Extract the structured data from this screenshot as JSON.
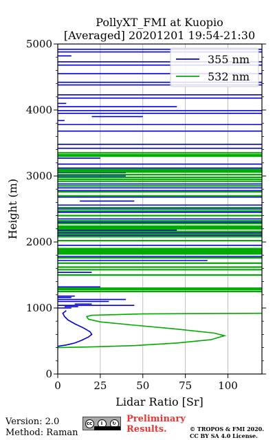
{
  "chart_data": {
    "type": "line",
    "title": "PollyXT_FMI at Kuopio",
    "subtitle": "[Averaged] 20201201 19:54-21:30",
    "xlabel": "Lidar Ratio [Sr]",
    "ylabel": "Height (m)",
    "xlim": [
      0,
      120
    ],
    "ylim": [
      0,
      5000
    ],
    "xticks": [
      "0",
      "25",
      "50",
      "75",
      "100"
    ],
    "yticks": [
      "0",
      "1000",
      "2000",
      "3000",
      "4000",
      "5000"
    ],
    "grid": "vertical",
    "legend_position": "top-right",
    "series": [
      {
        "name": "355 nm",
        "color": "#0000dd",
        "profile": [
          [
            0,
            420
          ],
          [
            5,
            440
          ],
          [
            10,
            470
          ],
          [
            14,
            510
          ],
          [
            18,
            560
          ],
          [
            20,
            600
          ],
          [
            19,
            640
          ],
          [
            15,
            700
          ],
          [
            10,
            760
          ],
          [
            6,
            820
          ],
          [
            4,
            870
          ],
          [
            3,
            920
          ],
          [
            5,
            960
          ]
        ],
        "noise_segments": [
          [
            0,
            8,
            1000
          ],
          [
            4,
            12,
            1020
          ],
          [
            0,
            45,
            1040
          ],
          [
            10,
            20,
            1060
          ],
          [
            0,
            30,
            1100
          ],
          [
            0,
            40,
            1130
          ],
          [
            0,
            8,
            1160
          ],
          [
            0,
            10,
            1180
          ],
          [
            0,
            38,
            1280
          ],
          [
            0,
            25,
            1320
          ],
          [
            0,
            30,
            1500
          ],
          [
            0,
            20,
            1540
          ],
          [
            0,
            88,
            1720
          ],
          [
            0,
            120,
            1780
          ],
          [
            0,
            100,
            1820
          ],
          [
            0,
            120,
            1950
          ],
          [
            0,
            120,
            2100
          ],
          [
            0,
            120,
            2140
          ],
          [
            0,
            70,
            2180
          ],
          [
            0,
            120,
            2300
          ],
          [
            0,
            120,
            2350
          ],
          [
            0,
            120,
            2450
          ],
          [
            0,
            120,
            2500
          ],
          [
            0,
            120,
            2560
          ],
          [
            13,
            45,
            2620
          ],
          [
            0,
            120,
            2680
          ],
          [
            0,
            120,
            2780
          ],
          [
            0,
            120,
            2820
          ],
          [
            0,
            120,
            2880
          ],
          [
            0,
            40,
            3000
          ],
          [
            0,
            40,
            3050
          ],
          [
            0,
            120,
            3120
          ],
          [
            0,
            120,
            3180
          ],
          [
            0,
            25,
            3270
          ],
          [
            0,
            120,
            3420
          ],
          [
            0,
            120,
            3480
          ],
          [
            0,
            120,
            3680
          ],
          [
            0,
            120,
            3780
          ],
          [
            0,
            4,
            3840
          ],
          [
            20,
            50,
            3900
          ],
          [
            0,
            120,
            3950
          ],
          [
            0,
            120,
            3990
          ],
          [
            0,
            70,
            4050
          ],
          [
            0,
            5,
            4100
          ],
          [
            0,
            120,
            4180
          ],
          [
            0,
            120,
            4230
          ],
          [
            0,
            120,
            4380
          ],
          [
            0,
            120,
            4420
          ],
          [
            0,
            120,
            4550
          ],
          [
            0,
            120,
            4680
          ],
          [
            0,
            120,
            4730
          ],
          [
            0,
            8,
            4820
          ],
          [
            0,
            120,
            4880
          ],
          [
            0,
            120,
            4920
          ]
        ]
      },
      {
        "name": "532 nm",
        "color": "#00aa00",
        "profile": [
          [
            0,
            400
          ],
          [
            20,
            410
          ],
          [
            45,
            430
          ],
          [
            70,
            470
          ],
          [
            90,
            520
          ],
          [
            98,
            580
          ],
          [
            92,
            620
          ],
          [
            70,
            680
          ],
          [
            45,
            740
          ],
          [
            25,
            790
          ],
          [
            18,
            830
          ],
          [
            17,
            870
          ],
          [
            20,
            890
          ],
          [
            50,
            910
          ],
          [
            120,
            920
          ]
        ],
        "noise_segments": [
          [
            0,
            120,
            1250
          ],
          [
            0,
            120,
            1280
          ],
          [
            0,
            120,
            1300
          ],
          [
            0,
            120,
            1500
          ],
          [
            0,
            120,
            1580
          ],
          [
            0,
            120,
            1620
          ],
          [
            0,
            120,
            1680
          ],
          [
            0,
            120,
            1760
          ],
          [
            0,
            120,
            1820
          ],
          [
            0,
            120,
            1840
          ],
          [
            0,
            120,
            1860
          ],
          [
            0,
            120,
            1880
          ],
          [
            0,
            120,
            1900
          ],
          [
            0,
            120,
            2020
          ],
          [
            0,
            120,
            2080
          ],
          [
            0,
            120,
            2120
          ],
          [
            0,
            120,
            2160
          ],
          [
            0,
            120,
            2200
          ],
          [
            0,
            120,
            2220
          ],
          [
            0,
            120,
            2240
          ],
          [
            0,
            120,
            2280
          ],
          [
            0,
            120,
            2320
          ],
          [
            0,
            120,
            2400
          ],
          [
            0,
            120,
            2470
          ],
          [
            0,
            120,
            2520
          ],
          [
            0,
            120,
            2700
          ],
          [
            0,
            120,
            2760
          ],
          [
            0,
            120,
            2850
          ],
          [
            0,
            120,
            2920
          ],
          [
            0,
            120,
            2950
          ],
          [
            0,
            120,
            2980
          ],
          [
            0,
            120,
            3020
          ],
          [
            0,
            120,
            3060
          ],
          [
            0,
            120,
            3080
          ],
          [
            0,
            120,
            3100
          ],
          [
            0,
            120,
            3300
          ],
          [
            0,
            120,
            3320
          ],
          [
            0,
            120,
            3350
          ]
        ]
      }
    ]
  },
  "footer": {
    "version": "Version: 2.0",
    "method": "Method: Raman",
    "preliminary_line1": "Preliminary",
    "preliminary_line2": "Results.",
    "copyright_line1": "© TROPOS & FMI 2020.",
    "copyright_line2": "CC BY SA 4.0 License.",
    "badge_text": "cc"
  }
}
